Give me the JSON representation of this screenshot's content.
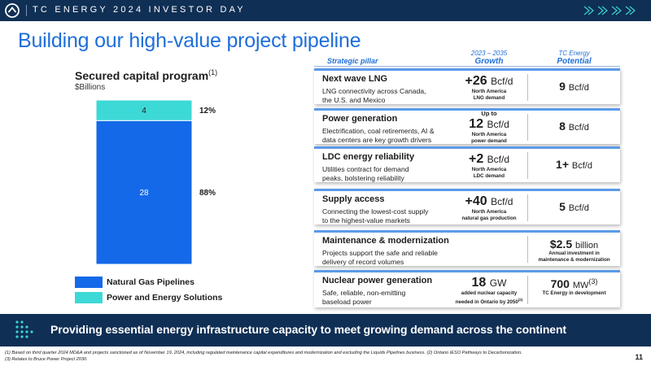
{
  "header": {
    "event": "TC ENERGY 2024 INVESTOR DAY"
  },
  "title": "Building our high-value project pipeline",
  "chart_data": {
    "type": "bar",
    "stacked": true,
    "title": "Secured capital program",
    "title_note": "(1)",
    "unit": "$Billions",
    "categories": [
      ""
    ],
    "series": [
      {
        "name": "Natural Gas Pipelines",
        "values": [
          28
        ],
        "share": "88%",
        "color": "#1469e8"
      },
      {
        "name": "Power and Energy Solutions",
        "values": [
          4
        ],
        "share": "12%",
        "color": "#3dd9d6"
      }
    ],
    "grid": false,
    "legend": "bottom-left"
  },
  "table": {
    "pillar_header": "Strategic pillar",
    "growth_header": {
      "period": "2023 – 2035",
      "label": "Growth"
    },
    "potential_header": {
      "top": "TC Energy",
      "label": "Potential"
    },
    "rows": [
      {
        "name": "Next wave LNG",
        "desc1": "LNG connectivity across Canada,",
        "desc2": "the U.S. and Mexico",
        "growth_pre": "",
        "growth_value": "+26",
        "growth_unit": "Bcf/d",
        "growth_note1": "North America",
        "growth_note2": "LNG demand",
        "potential_value": "9",
        "potential_unit": "Bcf/d",
        "potential_note1": "",
        "potential_note2": ""
      },
      {
        "name": "Power generation",
        "desc1": "Electrification, coal retirements, AI &",
        "desc2": "data centers are key growth drivers",
        "growth_pre": "Up to",
        "growth_value": "12",
        "growth_unit": "Bcf/d",
        "growth_note1": "North America",
        "growth_note2": "power demand",
        "potential_value": "8",
        "potential_unit": "Bcf/d",
        "potential_note1": "",
        "potential_note2": ""
      },
      {
        "name": "LDC energy reliability",
        "desc1": "Utilities contract for demand",
        "desc2": "peaks, bolstering reliability",
        "growth_pre": "",
        "growth_value": "+2",
        "growth_unit": "Bcf/d",
        "growth_note1": "North America",
        "growth_note2": "LDC demand",
        "potential_value": "1+",
        "potential_unit": "Bcf/d",
        "potential_note1": "",
        "potential_note2": ""
      },
      {
        "name": "Supply access",
        "desc1": "Connecting the lowest-cost supply",
        "desc2": "to the highest-value markets",
        "growth_pre": "",
        "growth_value": "+40",
        "growth_unit": "Bcf/d",
        "growth_note1": "North America",
        "growth_note2": "natural gas production",
        "potential_value": "5",
        "potential_unit": "Bcf/d",
        "potential_note1": "",
        "potential_note2": ""
      },
      {
        "name": "Maintenance & modernization",
        "desc1": "Projects support the safe and reliable",
        "desc2": "delivery of record volumes",
        "growth_pre": "",
        "growth_value": "",
        "growth_unit": "",
        "growth_note1": "",
        "growth_note2": "",
        "potential_value": "$2.5",
        "potential_unit": "billion",
        "potential_note1": "Annual investment in",
        "potential_note2": "maintenance & modernization"
      },
      {
        "name": "Nuclear power generation",
        "desc1": "Safe, reliable, non-emitting",
        "desc2": "baseload power",
        "growth_pre": "",
        "growth_value": "18",
        "growth_unit": "GW",
        "growth_note1": "added nuclear capacity",
        "growth_note2": "needed in Ontario by 2050",
        "growth_note_sup": "(2)",
        "potential_value": "700",
        "potential_unit": "MW",
        "potential_sup": "(3)",
        "potential_note1": "TC Energy in development",
        "potential_note2": ""
      }
    ]
  },
  "banner": {
    "text": "Providing essential energy infrastructure capacity to meet growing demand across the continent"
  },
  "footnotes": {
    "line1": "(1) Based on third quarter 2024 MD&A and projects sanctioned as of November 19, 2024, including regulated maintenance capital expenditures and modernization and excluding the Liquids Pipelines business. (2) Ontario IESO Pathways to Decarbonization.",
    "line2": "(3) Relates to Bruce Power Project 2030."
  },
  "page_number": "11",
  "colors": {
    "navy": "#0f2f55",
    "accent": "#1e6fd9",
    "bar_primary": "#1469e8",
    "bar_secondary": "#3dd9d6",
    "chevron": "#3ed3c9"
  }
}
